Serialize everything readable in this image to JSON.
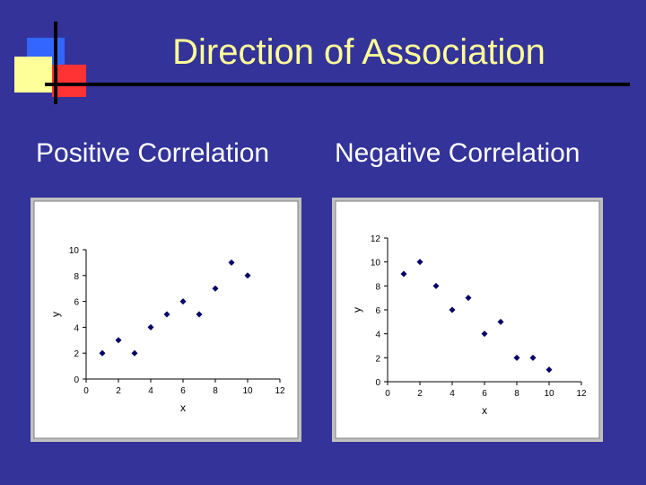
{
  "slide": {
    "title": "Direction of Association",
    "left_heading": "Positive Correlation",
    "right_heading": "Negative Correlation"
  },
  "colors": {
    "background": "#333399",
    "title": "#ffff99",
    "heading": "#ffffff",
    "point": "#000066"
  },
  "chart_data": [
    {
      "type": "scatter",
      "title": "",
      "xlabel": "x",
      "ylabel": "y",
      "xlim": [
        0,
        12
      ],
      "ylim": [
        0,
        10
      ],
      "xticks": [
        0,
        2,
        4,
        6,
        8,
        10,
        12
      ],
      "yticks": [
        0,
        2,
        4,
        6,
        8,
        10
      ],
      "grid": false,
      "series": [
        {
          "x": [
            1,
            2,
            3,
            4,
            5,
            6,
            7,
            8,
            9,
            10
          ],
          "y": [
            2,
            3,
            2,
            4,
            5,
            6,
            5,
            7,
            9,
            8
          ]
        }
      ]
    },
    {
      "type": "scatter",
      "title": "",
      "xlabel": "x",
      "ylabel": "y",
      "xlim": [
        0,
        12
      ],
      "ylim": [
        0,
        12
      ],
      "xticks": [
        0,
        2,
        4,
        6,
        8,
        10,
        12
      ],
      "yticks": [
        0,
        2,
        4,
        6,
        8,
        10,
        12
      ],
      "grid": false,
      "series": [
        {
          "x": [
            1,
            2,
            3,
            4,
            5,
            6,
            7,
            8,
            9,
            10
          ],
          "y": [
            9,
            10,
            8,
            6,
            7,
            4,
            5,
            2,
            2,
            1
          ]
        }
      ]
    }
  ]
}
